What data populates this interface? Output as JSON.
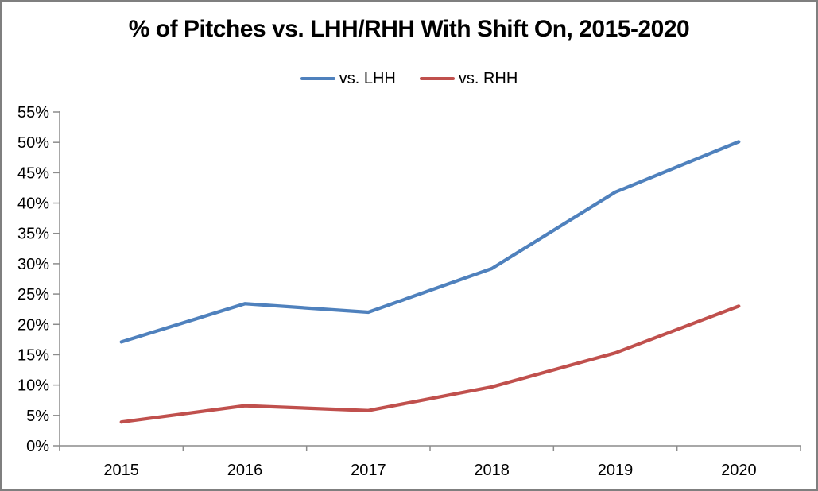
{
  "window": {
    "background_color": "#ffffff",
    "border_color": "#7f7f7f"
  },
  "chart_data": {
    "type": "line",
    "title": "% of Pitches vs. LHH/RHH With Shift On, 2015-2020",
    "categories": [
      "2015",
      "2016",
      "2017",
      "2018",
      "2019",
      "2020"
    ],
    "series": [
      {
        "name": "vs. LHH",
        "color": "#4F81BD",
        "values": [
          17.1,
          23.4,
          22.0,
          29.2,
          41.8,
          50.1
        ]
      },
      {
        "name": "vs. RHH",
        "color": "#C0504D",
        "values": [
          3.9,
          6.6,
          5.8,
          9.7,
          15.3,
          23.0
        ]
      }
    ],
    "xlabel": "",
    "ylabel": "",
    "ylim": [
      0,
      55
    ],
    "y_tick_step": 5,
    "y_tick_labels": [
      "0%",
      "5%",
      "10%",
      "15%",
      "20%",
      "25%",
      "30%",
      "35%",
      "40%",
      "45%",
      "50%",
      "55%"
    ],
    "grid": false,
    "legend_position": "top-center",
    "axis_color": "#8c8c8c",
    "tick_color": "#8c8c8c",
    "label_color": "#000000",
    "line_width": 4.25
  }
}
